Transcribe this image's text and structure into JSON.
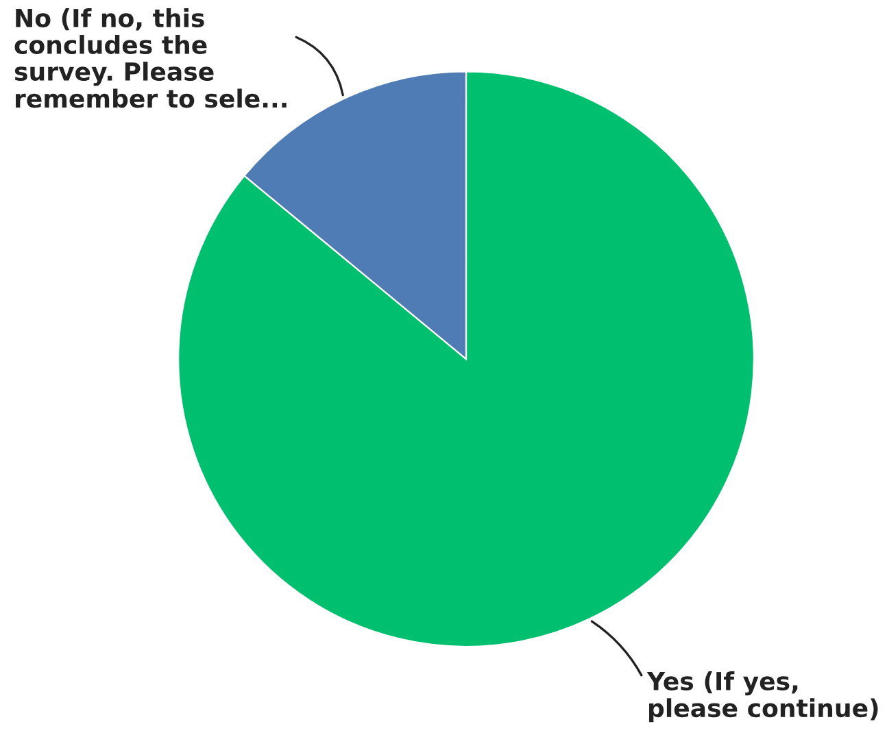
{
  "chart_data": {
    "type": "pie",
    "categories": [
      "Yes (If yes,\nplease continue)",
      "No (If no, this\nconcludes the\nsurvey. Please\nremember to sele..."
    ],
    "values": [
      86,
      14
    ],
    "colors": [
      "#00bf6f",
      "#507cb6"
    ]
  }
}
